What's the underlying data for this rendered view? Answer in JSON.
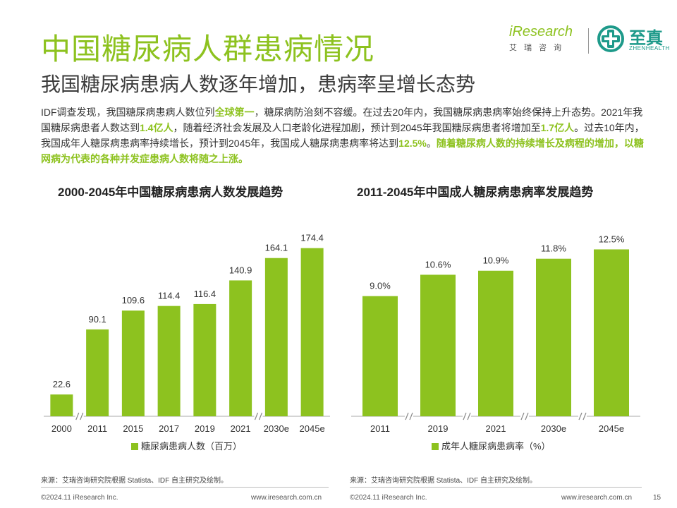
{
  "header": {
    "title": "中国糖尿病人群患病情况",
    "subtitle": "我国糖尿病患病人数逐年增加，患病率呈增长态势",
    "logo_ires_main": "iResearch",
    "logo_ires_sub": "艾瑞咨询",
    "logo_zh_name": "至真",
    "logo_zh_en": "ZHENHEALTH"
  },
  "body": {
    "p1": "IDF调查发现，我国糖尿病患病人数位列",
    "h1": "全球第一",
    "p2": "，糖尿病防治刻不容缓。在过去20年内，我国糖尿病患病率始终保持上升态势。2021年我国糖尿病患者人数达到",
    "h2": "1.4亿人",
    "p3": "，随着经济社会发展及人口老龄化进程加剧，预计到2045年我国糖尿病患者将增加至",
    "h3": "1.7亿人",
    "p4": "。过去10年内，我国成年人糖尿病患病率持续增长，预计到2045年，我国成人糖尿病患病率将达到",
    "h4": "12.5%",
    "p5": "。",
    "h5": "随着糖尿病人数的持续增长及病程的增加，以糖网病为代表的各种并发症患病人数将随之上涨。"
  },
  "chart_data": [
    {
      "type": "bar",
      "title": "2000-2045年中国糖尿病患病人数发展趋势",
      "categories": [
        "2000",
        "2011",
        "2015",
        "2017",
        "2019",
        "2021",
        "2030e",
        "2045e"
      ],
      "series": [
        {
          "name": "糖尿病患病人数（百万）",
          "values": [
            22.6,
            90.1,
            109.6,
            114.4,
            116.4,
            140.9,
            164.1,
            174.4
          ]
        }
      ],
      "value_labels": [
        "22.6",
        "90.1",
        "109.6",
        "114.4",
        "116.4",
        "140.9",
        "164.1",
        "174.4"
      ],
      "axis_breaks_after": [
        "2000",
        "2021"
      ],
      "ylim": [
        0,
        180
      ],
      "color": "#8dc21f",
      "legend": "bottom"
    },
    {
      "type": "bar",
      "title": "2011-2045年中国成人糖尿病患病率发展趋势",
      "categories": [
        "2011",
        "2019",
        "2021",
        "2030e",
        "2045e"
      ],
      "series": [
        {
          "name": "成年人糖尿病患病率（%）",
          "values": [
            9.0,
            10.6,
            10.9,
            11.8,
            12.5
          ]
        }
      ],
      "value_labels": [
        "9.0%",
        "10.6%",
        "10.9%",
        "11.8%",
        "12.5%"
      ],
      "axis_breaks_after": [
        "2011",
        "2019",
        "2021",
        "2030e"
      ],
      "ylim": [
        0,
        13
      ],
      "color": "#8dc21f",
      "legend": "bottom"
    }
  ],
  "footer": {
    "source1": "来源：艾瑞咨询研究院根据 Statista、IDF 自主研究及绘制。",
    "source2": "来源：艾瑞咨询研究院根据 Statista、IDF 自主研究及绘制。",
    "copyright1": "©2024.11 iResearch Inc.",
    "website1": "www.iresearch.com.cn",
    "copyright2": "©2024.11 iResearch Inc.",
    "website2": "www.iresearch.com.cn",
    "page": "15"
  }
}
